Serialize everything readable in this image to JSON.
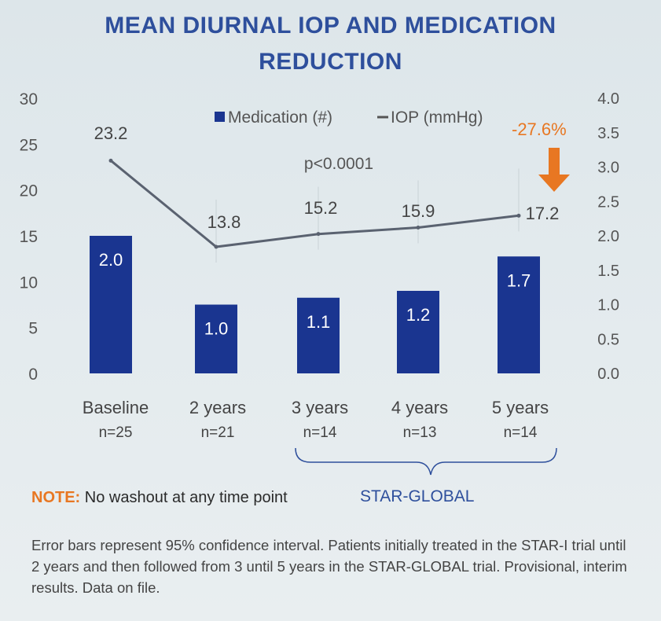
{
  "chart_data": {
    "type": "bar",
    "title_lines": [
      "MEAN DIURNAL IOP AND MEDICATION",
      "REDUCTION"
    ],
    "categories": [
      "Baseline",
      "2 years",
      "3 years",
      "4 years",
      "5 years"
    ],
    "sample_sizes": [
      "n=25",
      "n=21",
      "n=14",
      "n=13",
      "n=14"
    ],
    "legend": {
      "medication": "Medication (#)",
      "iop": "IOP (mmHg)",
      "placement": "top-center"
    },
    "series": [
      {
        "name": "Medication (#)",
        "type": "bar",
        "axis": "right",
        "values": [
          2.0,
          1.0,
          1.1,
          1.2,
          1.7
        ],
        "labels": [
          "2.0",
          "1.0",
          "1.1",
          "1.2",
          "1.7"
        ]
      },
      {
        "name": "IOP (mmHg)",
        "type": "line",
        "axis": "left",
        "values": [
          23.2,
          13.8,
          15.2,
          15.9,
          17.2
        ],
        "labels": [
          "23.2",
          "13.8",
          "15.2",
          "15.9",
          "17.2"
        ]
      }
    ],
    "left_axis": {
      "ylim": [
        0,
        30
      ],
      "ticks": [
        "0",
        "5",
        "10",
        "15",
        "20",
        "25",
        "30"
      ]
    },
    "right_axis": {
      "ylim": [
        0,
        4
      ],
      "ticks": [
        "0.0",
        "0.5",
        "1.0",
        "1.5",
        "2.0",
        "2.5",
        "3.0",
        "3.5",
        "4.0"
      ]
    },
    "annotations": {
      "pvalue": "p<0.0001",
      "reduction": "-27.6%"
    },
    "group_label": "STAR-GLOBAL",
    "colors": {
      "bar": "#1a3590",
      "line": "#5a6270",
      "accent": "#e87722",
      "title": "#2e4f9c"
    }
  },
  "note": {
    "keyword": "NOTE:",
    "text": " No washout at any time point"
  },
  "footnote": "Error bars represent 95% confidence interval. Patients initially treated in the STAR-I trial until 2 years and then followed from 3 until 5 years in the STAR-GLOBAL trial. Provisional, interim results. Data on file."
}
